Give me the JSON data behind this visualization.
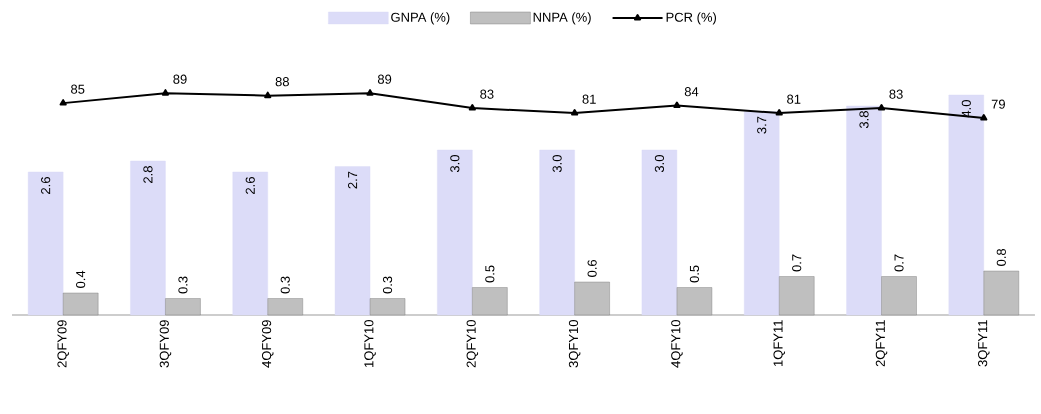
{
  "chart_data": {
    "type": "bar",
    "categories": [
      "2QFY09",
      "3QFY09",
      "4QFY09",
      "1QFY10",
      "2QFY10",
      "3QFY10",
      "4QFY10",
      "1QFY11",
      "2QFY11",
      "3QFY11"
    ],
    "series": [
      {
        "name": "GNPA (%)",
        "color": "#dcdcf8",
        "values": [
          2.6,
          2.8,
          2.6,
          2.7,
          3.0,
          3.0,
          3.0,
          3.7,
          3.8,
          4.0
        ],
        "value_labels": [
          "2.6",
          "2.8",
          "2.6",
          "2.7",
          "3.0",
          "3.0",
          "3.0",
          "3.7",
          "3.8",
          "4.0"
        ]
      },
      {
        "name": "NNPA (%)",
        "color": "#bfbfbf",
        "values": [
          0.4,
          0.3,
          0.3,
          0.3,
          0.5,
          0.6,
          0.5,
          0.7,
          0.7,
          0.8
        ]
      },
      {
        "name": "PCR (%)",
        "type": "line",
        "axis": "y2",
        "color": "#000000",
        "marker": "triangle",
        "values": [
          85,
          89,
          88,
          89,
          83,
          81,
          84,
          81,
          83,
          79
        ]
      }
    ],
    "data_labels": true,
    "tick_labels": "x",
    "legend": "top",
    "grid": false
  }
}
